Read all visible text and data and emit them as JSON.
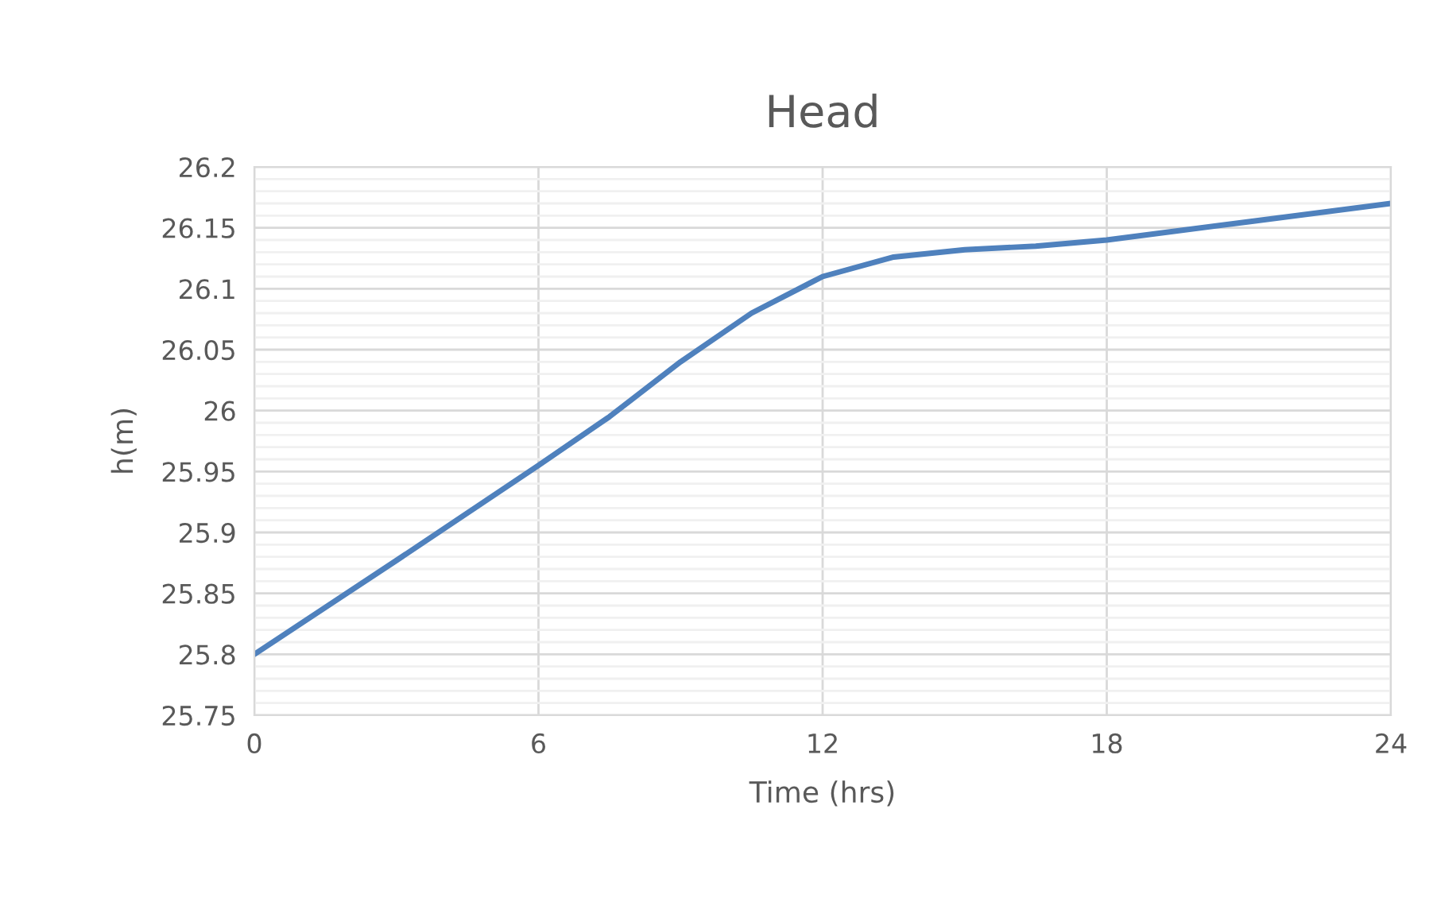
{
  "chart_data": {
    "type": "line",
    "title": "Head",
    "xlabel": "Time (hrs)",
    "ylabel": "h(m)",
    "x": [
      0,
      3,
      6,
      7.5,
      9,
      10.5,
      12,
      13.5,
      15,
      16.5,
      18,
      21,
      24
    ],
    "series": [
      {
        "color": "#4f81bd",
        "values": [
          25.8,
          25.877,
          25.955,
          25.995,
          26.04,
          26.08,
          26.11,
          26.126,
          26.132,
          26.135,
          26.14,
          26.155,
          26.17
        ]
      }
    ],
    "xlim": [
      0,
      24
    ],
    "xticks": [
      0,
      6,
      12,
      18,
      24
    ],
    "ylim": [
      25.75,
      26.2
    ],
    "yticks": [
      25.75,
      25.8,
      25.85,
      25.9,
      25.95,
      26,
      26.05,
      26.1,
      26.15,
      26.2
    ],
    "grid": true,
    "marker": "none",
    "line_style": "solid"
  }
}
